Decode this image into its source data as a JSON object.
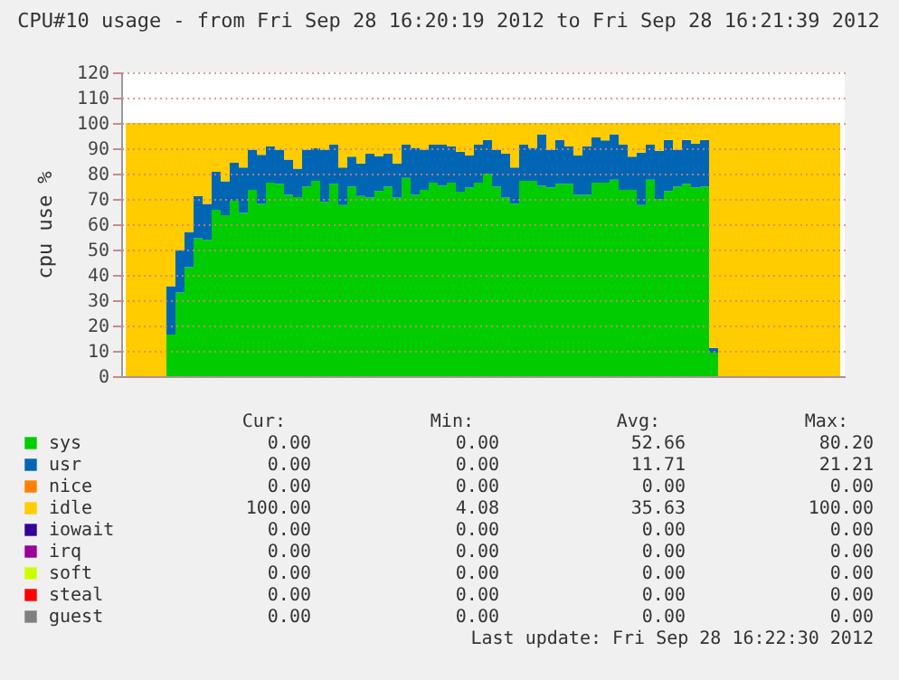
{
  "chart_data": {
    "type": "area",
    "stacked": true,
    "title": "CPU#10 usage - from Fri Sep 28 16:20:19 2012 to Fri Sep 28 16:21:39 2012",
    "ylabel": "cpu use %",
    "categories": [
      null,
      null,
      null,
      null,
      null,
      null,
      null,
      null,
      null,
      null,
      null,
      null,
      null,
      null,
      null,
      null,
      null,
      null,
      null,
      null,
      null,
      null,
      null,
      null,
      null,
      null,
      null,
      null,
      null,
      null,
      null,
      null,
      null,
      null,
      null,
      null,
      null,
      null,
      null,
      null,
      null,
      null,
      null,
      null,
      null,
      null,
      null,
      null,
      null,
      null,
      null,
      null,
      null,
      null,
      null,
      null,
      null,
      null,
      null,
      null,
      null,
      null,
      null,
      null,
      null,
      null,
      null,
      null,
      null,
      null,
      null,
      null,
      null,
      null,
      null,
      null,
      null,
      null,
      null,
      null
    ],
    "ylim": [
      0,
      120
    ],
    "yticks": [
      0,
      10,
      20,
      30,
      40,
      50,
      60,
      70,
      80,
      90,
      100,
      110,
      120
    ],
    "grid": "y",
    "legend": "bottom",
    "tick_labels": "y",
    "series": [
      {
        "name": "sys",
        "color": "#00cc00",
        "values": [
          0,
          0,
          0,
          0,
          0,
          16.4,
          33,
          43,
          54.5,
          53.8,
          65.7,
          63.6,
          69.3,
          64.5,
          73.6,
          68,
          76.4,
          76,
          71.6,
          70.7,
          74.8,
          77.1,
          68.8,
          76,
          67.6,
          74.8,
          71.2,
          70.5,
          73.1,
          74.8,
          70.5,
          78.3,
          71.6,
          73.6,
          76.4,
          75.2,
          76.4,
          72.9,
          74.5,
          76.4,
          80,
          74.8,
          70.5,
          68.1,
          77.1,
          77.1,
          75.2,
          74.5,
          76,
          76,
          71.6,
          71.6,
          76.4,
          76.4,
          77.6,
          73.6,
          73.6,
          67.6,
          77.6,
          70,
          73.1,
          74.8,
          76,
          74.5,
          74.8,
          9.3,
          0,
          0,
          0,
          0,
          0,
          0,
          0,
          0,
          0,
          0,
          0,
          0,
          0,
          0
        ]
      },
      {
        "name": "usr",
        "color": "#0066b3",
        "values": [
          0,
          0,
          0,
          0,
          0,
          19.1,
          16.8,
          14,
          16.7,
          14.2,
          15,
          13.4,
          15,
          17.9,
          15.9,
          19.4,
          14.3,
          13.5,
          13.9,
          11.3,
          14.7,
          12.9,
          20.7,
          15.4,
          14.8,
          11.9,
          12.8,
          17.4,
          13.9,
          13.1,
          13.5,
          13.1,
          18.6,
          15.9,
          15,
          16.2,
          14.3,
          15.7,
          12.6,
          15,
          13.3,
          14.7,
          17.4,
          14.3,
          14.3,
          13.1,
          20.3,
          15,
          17.3,
          14.7,
          15.5,
          19.1,
          17.9,
          16.7,
          17.9,
          17.8,
          13.1,
          20.7,
          13.8,
          19,
          20.2,
          14.7,
          17.3,
          17.4,
          18.5,
          1.9,
          0,
          0,
          0,
          0,
          0,
          0,
          0,
          0,
          0,
          0,
          0,
          0,
          0,
          0
        ]
      },
      {
        "name": "nice",
        "color": "#ff8000",
        "values": [
          null,
          null,
          null,
          null,
          null,
          null,
          null,
          null,
          null,
          null,
          null,
          null,
          null,
          null,
          null,
          null,
          null,
          null,
          null,
          null,
          null,
          null,
          null,
          null,
          null,
          null,
          null,
          null,
          null,
          null,
          null,
          null,
          null,
          null,
          null,
          null,
          null,
          null,
          null,
          null,
          null,
          null,
          null,
          null,
          null,
          null,
          null,
          null,
          null,
          null,
          null,
          null,
          null,
          null,
          null,
          null,
          null,
          null,
          null,
          null,
          null,
          null,
          null,
          null,
          null,
          null,
          null,
          null,
          null,
          null,
          null,
          null,
          null,
          null,
          null,
          null,
          null,
          null,
          null,
          null
        ]
      },
      {
        "name": "idle",
        "color": "#ffcc00",
        "values": [
          100,
          100,
          100,
          100,
          100,
          64.5,
          50.2,
          43,
          28.8,
          32,
          19.3,
          23,
          15.7,
          17.6,
          10.5,
          12.6,
          9.3,
          10.5,
          14.5,
          18,
          10.5,
          10,
          10.5,
          8.6,
          17.6,
          13.3,
          16,
          12.1,
          13,
          12.1,
          16,
          8.6,
          9.8,
          10.5,
          8.6,
          8.6,
          9.3,
          11.4,
          12.9,
          8.6,
          6.7,
          10.5,
          12.1,
          17.6,
          8.6,
          9.8,
          4.5,
          10.5,
          6.7,
          9.3,
          12.9,
          9.3,
          5.7,
          6.9,
          4.5,
          8.6,
          13.3,
          11.7,
          8.6,
          11,
          6.7,
          10.5,
          6.7,
          8.1,
          6.7,
          88.8,
          100,
          100,
          100,
          100,
          100,
          100,
          100,
          100,
          100,
          100,
          100,
          100,
          100,
          100
        ]
      },
      {
        "name": "iowait",
        "color": "#330099",
        "values": [
          null,
          null,
          null,
          null,
          null,
          null,
          null,
          null,
          null,
          null,
          null,
          null,
          null,
          null,
          null,
          null,
          null,
          null,
          null,
          null,
          null,
          null,
          null,
          null,
          null,
          null,
          null,
          null,
          null,
          null,
          null,
          null,
          null,
          null,
          null,
          null,
          null,
          null,
          null,
          null,
          null,
          null,
          null,
          null,
          null,
          null,
          null,
          null,
          null,
          null,
          null,
          null,
          null,
          null,
          null,
          null,
          null,
          null,
          null,
          null,
          null,
          null,
          null,
          null,
          null,
          null,
          null,
          null,
          null,
          null,
          null,
          null,
          null,
          null,
          null,
          null,
          null,
          null,
          null,
          null
        ]
      },
      {
        "name": "irq",
        "color": "#990099",
        "values": [
          null,
          null,
          null,
          null,
          null,
          null,
          null,
          null,
          null,
          null,
          null,
          null,
          null,
          null,
          null,
          null,
          null,
          null,
          null,
          null,
          null,
          null,
          null,
          null,
          null,
          null,
          null,
          null,
          null,
          null,
          null,
          null,
          null,
          null,
          null,
          null,
          null,
          null,
          null,
          null,
          null,
          null,
          null,
          null,
          null,
          null,
          null,
          null,
          null,
          null,
          null,
          null,
          null,
          null,
          null,
          null,
          null,
          null,
          null,
          null,
          null,
          null,
          null,
          null,
          null,
          null,
          null,
          null,
          null,
          null,
          null,
          null,
          null,
          null,
          null,
          null,
          null,
          null,
          null,
          null
        ]
      },
      {
        "name": "soft",
        "color": "#ccff00",
        "values": [
          null,
          null,
          null,
          null,
          null,
          null,
          null,
          null,
          null,
          null,
          null,
          null,
          null,
          null,
          null,
          null,
          null,
          null,
          null,
          null,
          null,
          null,
          null,
          null,
          null,
          null,
          null,
          null,
          null,
          null,
          null,
          null,
          null,
          null,
          null,
          null,
          null,
          null,
          null,
          null,
          null,
          null,
          null,
          null,
          null,
          null,
          null,
          null,
          null,
          null,
          null,
          null,
          null,
          null,
          null,
          null,
          null,
          null,
          null,
          null,
          null,
          null,
          null,
          null,
          null,
          null,
          null,
          null,
          null,
          null,
          null,
          null,
          null,
          null,
          null,
          null,
          null,
          null,
          null,
          null
        ]
      },
      {
        "name": "steal",
        "color": "#ff0000",
        "values": [
          null,
          null,
          null,
          null,
          null,
          null,
          null,
          null,
          null,
          null,
          null,
          null,
          null,
          null,
          null,
          null,
          null,
          null,
          null,
          null,
          null,
          null,
          null,
          null,
          null,
          null,
          null,
          null,
          null,
          null,
          null,
          null,
          null,
          null,
          null,
          null,
          null,
          null,
          null,
          null,
          null,
          null,
          null,
          null,
          null,
          null,
          null,
          null,
          null,
          null,
          null,
          null,
          null,
          null,
          null,
          null,
          null,
          null,
          null,
          null,
          null,
          null,
          null,
          null,
          null,
          null,
          null,
          null,
          null,
          null,
          null,
          null,
          null,
          null,
          null,
          null,
          null,
          null,
          null,
          null
        ]
      },
      {
        "name": "guest",
        "color": "#808080",
        "values": [
          null,
          null,
          null,
          null,
          null,
          null,
          null,
          null,
          null,
          null,
          null,
          null,
          null,
          null,
          null,
          null,
          null,
          null,
          null,
          null,
          null,
          null,
          null,
          null,
          null,
          null,
          null,
          null,
          null,
          null,
          null,
          null,
          null,
          null,
          null,
          null,
          null,
          null,
          null,
          null,
          null,
          null,
          null,
          null,
          null,
          null,
          null,
          null,
          null,
          null,
          null,
          null,
          null,
          null,
          null,
          null,
          null,
          null,
          null,
          null,
          null,
          null,
          null,
          null,
          null,
          null,
          null,
          null,
          null,
          null,
          null,
          null,
          null,
          null,
          null,
          null,
          null,
          null,
          null,
          null
        ]
      }
    ],
    "annotations": [
      "Cur:",
      "Min:",
      "Avg:",
      "Max:",
      "0.00",
      "0.00",
      "52.66",
      "80.20",
      "0.00",
      "0.00",
      "11.71",
      "21.21",
      "0.00",
      "0.00",
      "0.00",
      "0.00",
      "100.00",
      "4.08",
      "35.63",
      "100.00",
      "0.00",
      "0.00",
      "0.00",
      "0.00",
      "0.00",
      "0.00",
      "0.00",
      "0.00",
      "0.00",
      "0.00",
      "0.00",
      "0.00",
      "0.00",
      "0.00",
      "0.00",
      "0.00",
      "0.00",
      "0.00",
      "0.00",
      "0.00",
      "Last update: Fri Sep 28 16:22:30 2012"
    ]
  }
}
